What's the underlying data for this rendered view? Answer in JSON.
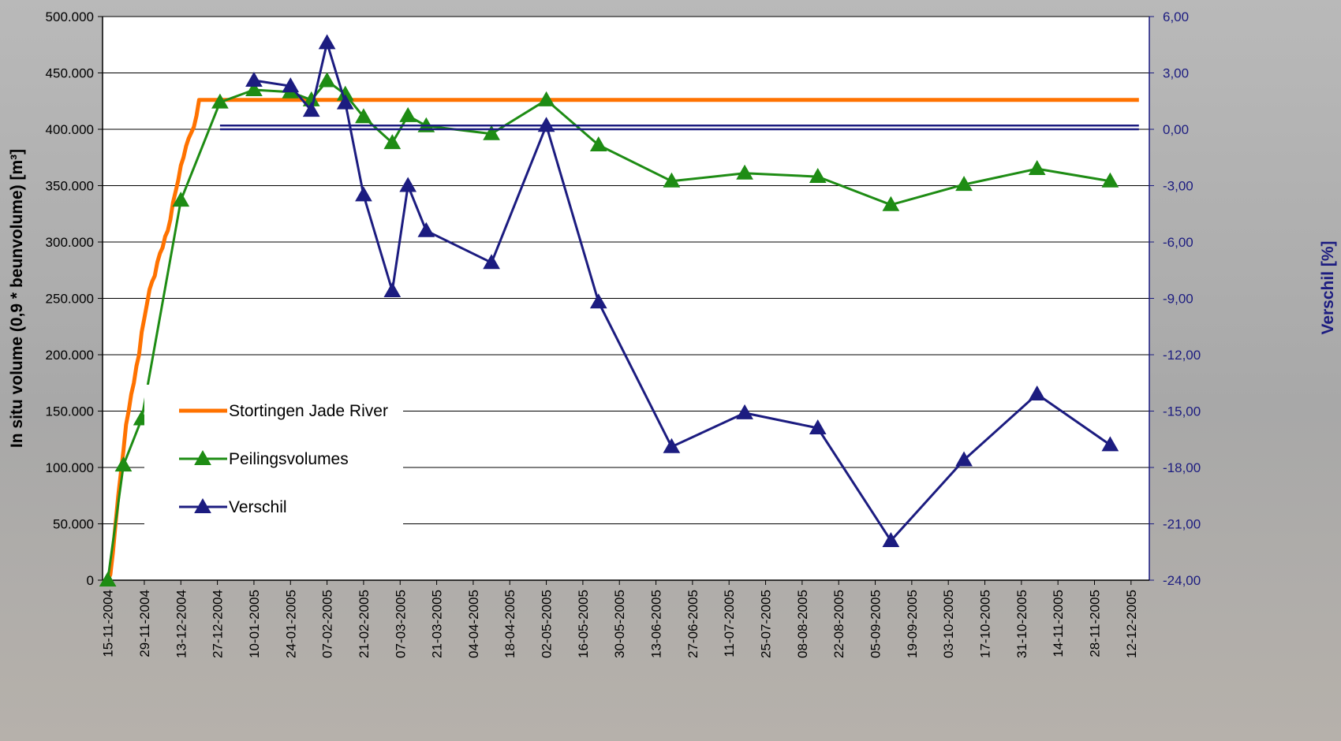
{
  "chart_data": {
    "type": "line",
    "ylabel": "In situ volume (0,9 * beunvolume) [m³]",
    "y2label": "Verschil [%]",
    "ylim": [
      0,
      500000
    ],
    "y2lim": [
      -24,
      6
    ],
    "y_ticks": [
      "0",
      "50.000",
      "100.000",
      "150.000",
      "200.000",
      "250.000",
      "300.000",
      "350.000",
      "400.000",
      "450.000",
      "500.000"
    ],
    "y2_ticks": [
      "-24,00",
      "-21,00",
      "-18,00",
      "-15,00",
      "-12,00",
      "-9,00",
      "-6,00",
      "-3,00",
      "0,00",
      "3,00",
      "6,00"
    ],
    "x_ticks": [
      "15-11-2004",
      "29-11-2004",
      "13-12-2004",
      "27-12-2004",
      "10-01-2005",
      "24-01-2005",
      "07-02-2005",
      "21-02-2005",
      "07-03-2005",
      "21-03-2005",
      "04-04-2005",
      "18-04-2005",
      "02-05-2005",
      "16-05-2005",
      "30-05-2005",
      "13-06-2005",
      "27-06-2005",
      "11-07-2005",
      "25-07-2005",
      "08-08-2005",
      "22-08-2005",
      "05-09-2005",
      "19-09-2005",
      "03-10-2005",
      "17-10-2005",
      "31-10-2005",
      "14-11-2005",
      "28-11-2005",
      "12-12-2005"
    ],
    "xlim": [
      "2004-11-13",
      "2005-12-19"
    ],
    "grid": true,
    "legend_placement": "left-middle",
    "series": [
      {
        "name": "Stortingen Jade River",
        "axis": "left",
        "color": "#ff7200",
        "marker": "none",
        "x": [
          "2004-11-15",
          "2004-11-16",
          "2004-11-17",
          "2004-11-18",
          "2004-11-19",
          "2004-11-20",
          "2004-11-21",
          "2004-11-22",
          "2004-11-23",
          "2004-11-24",
          "2004-11-25",
          "2004-11-26",
          "2004-11-27",
          "2004-11-28",
          "2004-11-29",
          "2004-11-30",
          "2004-12-01",
          "2004-12-02",
          "2004-12-03",
          "2004-12-04",
          "2004-12-05",
          "2004-12-06",
          "2004-12-07",
          "2004-12-08",
          "2004-12-09",
          "2004-12-10",
          "2004-12-11",
          "2004-12-12",
          "2004-12-13",
          "2004-12-14",
          "2004-12-15",
          "2004-12-16",
          "2004-12-17",
          "2004-12-18",
          "2004-12-19",
          "2004-12-20",
          "2005-12-15"
        ],
        "values": [
          0,
          5000,
          25000,
          50000,
          75000,
          95000,
          115000,
          138000,
          150000,
          165000,
          175000,
          190000,
          200000,
          220000,
          232000,
          245000,
          258000,
          265000,
          270000,
          282000,
          290000,
          295000,
          305000,
          310000,
          320000,
          335000,
          345000,
          355000,
          368000,
          375000,
          385000,
          392000,
          397000,
          402000,
          412000,
          426000,
          426000
        ]
      },
      {
        "name": "Peilingsvolumes",
        "axis": "left",
        "color": "#1e8c14",
        "marker": "triangle",
        "x": [
          "2004-11-15",
          "2004-11-21",
          "2004-11-28",
          "2004-12-13",
          "2004-12-28",
          "2005-01-10",
          "2005-01-24",
          "2005-02-01",
          "2005-02-07",
          "2005-02-14",
          "2005-02-21",
          "2005-03-04",
          "2005-03-10",
          "2005-03-17",
          "2005-04-11",
          "2005-05-02",
          "2005-05-22",
          "2005-06-19",
          "2005-07-17",
          "2005-08-14",
          "2005-09-11",
          "2005-10-09",
          "2005-11-06",
          "2005-12-04"
        ],
        "values": [
          0,
          102000,
          143000,
          337000,
          424000,
          435000,
          433000,
          426000,
          443000,
          431000,
          411000,
          388000,
          412000,
          403000,
          396000,
          426000,
          386000,
          354000,
          361000,
          358000,
          333000,
          351000,
          365000,
          354000
        ]
      },
      {
        "name": "Verschil",
        "axis": "right",
        "color": "#1c1c80",
        "marker": "triangle",
        "x": [
          "2005-01-10",
          "2005-01-24",
          "2005-02-01",
          "2005-02-07",
          "2005-02-14",
          "2005-02-21",
          "2005-03-04",
          "2005-03-10",
          "2005-03-17",
          "2005-04-11",
          "2005-05-02",
          "2005-05-22",
          "2005-06-19",
          "2005-07-17",
          "2005-08-14",
          "2005-09-11",
          "2005-10-09",
          "2005-11-06",
          "2005-12-04"
        ],
        "values": [
          2.6,
          2.3,
          1.0,
          4.6,
          1.4,
          -3.5,
          -8.6,
          -3.0,
          -5.4,
          -7.1,
          0.2,
          -9.2,
          -16.9,
          -15.1,
          -15.9,
          -21.9,
          -17.6,
          -14.1,
          -16.8
        ]
      },
      {
        "name": "",
        "axis": "right",
        "color": "#1c1c80",
        "marker": "none",
        "x": [
          "2004-12-28",
          "2005-12-15"
        ],
        "values": [
          0.2,
          0.2
        ]
      },
      {
        "name": "",
        "axis": "right",
        "color": "#1c1c80",
        "marker": "none",
        "x": [
          "2004-12-28",
          "2005-12-15"
        ],
        "values": [
          0.0,
          0.0
        ]
      }
    ],
    "legend": [
      "Stortingen Jade River",
      "Peilingsvolumes",
      "Verschil"
    ]
  }
}
